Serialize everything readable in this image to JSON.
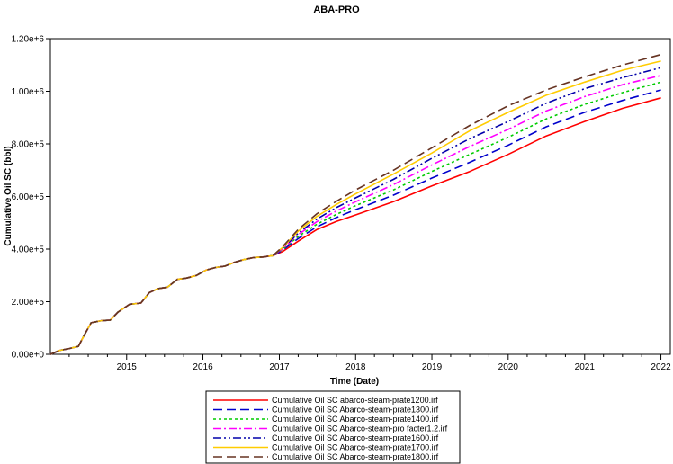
{
  "chart_data": {
    "type": "line",
    "title": "ABA-PRO",
    "xlabel": "Time (Date)",
    "ylabel": "Cumulative Oil SC (bbl)",
    "xlim": [
      "2014-01-01",
      "2022-02-15"
    ],
    "ylim": [
      0,
      1200000
    ],
    "x_ticks": [
      "2015",
      "2016",
      "2017",
      "2018",
      "2019",
      "2020",
      "2021",
      "2022"
    ],
    "y_ticks": [
      "0.00e+0",
      "2.00e+5",
      "4.00e+5",
      "6.00e+5",
      "8.00e+5",
      "1.00e+6",
      "1.20e+6"
    ],
    "y_tick_values": [
      0,
      200000,
      400000,
      600000,
      800000,
      1000000,
      1200000
    ],
    "grid": false,
    "legend_position": "bottom",
    "shared_history": {
      "x": [
        "2014-01-01",
        "2014-02-15",
        "2014-04-01",
        "2014-05-15",
        "2014-06-10",
        "2014-07-15",
        "2014-09-01",
        "2014-10-15",
        "2014-11-20",
        "2015-01-15",
        "2015-03-10",
        "2015-04-20",
        "2015-06-01",
        "2015-07-15",
        "2015-09-01",
        "2015-10-15",
        "2015-12-01",
        "2016-01-15",
        "2016-03-01",
        "2016-04-15",
        "2016-06-01",
        "2016-07-15",
        "2016-09-01",
        "2016-10-15",
        "2016-12-01"
      ],
      "y": [
        0,
        15000,
        22000,
        30000,
        70000,
        120000,
        128000,
        130000,
        160000,
        190000,
        195000,
        235000,
        250000,
        255000,
        285000,
        290000,
        300000,
        320000,
        330000,
        335000,
        350000,
        360000,
        368000,
        370000,
        375000
      ]
    },
    "forecast_x": [
      "2017-01-15",
      "2017-04-01",
      "2017-07-01",
      "2017-10-01",
      "2018-01-01",
      "2018-07-01",
      "2019-01-01",
      "2019-07-01",
      "2020-01-01",
      "2020-07-01",
      "2021-01-01",
      "2021-07-01",
      "2022-01-01"
    ],
    "series": [
      {
        "name": "Cumulative Oil SC abarco-steam-prate1200.irf",
        "color": "#ff0000",
        "dash": "solid",
        "values": [
          390000,
          430000,
          475000,
          505000,
          530000,
          580000,
          640000,
          695000,
          760000,
          830000,
          885000,
          935000,
          975000
        ]
      },
      {
        "name": "Cumulative Oil SC Abarco-steam-prate1300.irf",
        "color": "#0000cc",
        "dash": "longdash",
        "values": [
          395000,
          440000,
          485000,
          520000,
          550000,
          605000,
          670000,
          730000,
          795000,
          865000,
          920000,
          965000,
          1005000
        ]
      },
      {
        "name": "Cumulative Oil SC Abarco-steam-prate1400.irf",
        "color": "#00cc00",
        "dash": "dot",
        "values": [
          398000,
          448000,
          495000,
          532000,
          565000,
          625000,
          695000,
          760000,
          825000,
          895000,
          950000,
          995000,
          1035000
        ]
      },
      {
        "name": "Cumulative Oil SC Abarco-steam-pro facter1.2.irf",
        "color": "#ff00ff",
        "dash": "dashdot",
        "values": [
          400000,
          455000,
          505000,
          545000,
          580000,
          645000,
          720000,
          790000,
          855000,
          925000,
          980000,
          1025000,
          1060000
        ]
      },
      {
        "name": "Cumulative Oil SC Abarco-steam-prate1600.irf",
        "color": "#0000aa",
        "dash": "dashdotdot",
        "values": [
          402000,
          460000,
          515000,
          558000,
          595000,
          665000,
          745000,
          820000,
          885000,
          955000,
          1010000,
          1052000,
          1090000
        ]
      },
      {
        "name": "Cumulative Oil SC Abarco-steam-prate1700.irf",
        "color": "#ffcc00",
        "dash": "solid",
        "values": [
          405000,
          468000,
          525000,
          570000,
          610000,
          685000,
          765000,
          850000,
          920000,
          985000,
          1035000,
          1080000,
          1115000
        ]
      },
      {
        "name": "Cumulative Oil SC Abarco-steam-prate1800.irf",
        "color": "#663322",
        "dash": "longdash",
        "values": [
          408000,
          475000,
          535000,
          582000,
          625000,
          700000,
          785000,
          870000,
          945000,
          1005000,
          1055000,
          1100000,
          1140000
        ]
      }
    ]
  }
}
